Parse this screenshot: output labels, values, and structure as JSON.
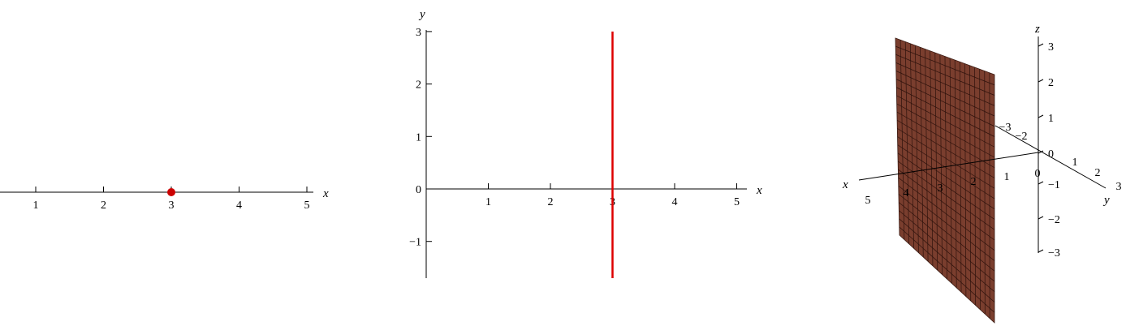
{
  "chart_data": [
    {
      "type": "scatter",
      "dimension": "1D number line",
      "xlabel": "x",
      "xticks": [
        "1",
        "2",
        "3",
        "4",
        "5"
      ],
      "points": [
        {
          "x": 3,
          "color": "#cc0000"
        }
      ]
    },
    {
      "type": "line",
      "dimension": "2D plane",
      "xlabel": "x",
      "ylabel": "y",
      "xticks": [
        "1",
        "2",
        "3",
        "4",
        "5"
      ],
      "yticks": [
        "−1",
        "0",
        "1",
        "2",
        "3"
      ],
      "ylim": [
        -1.7,
        3
      ],
      "line": {
        "x": 3,
        "y_range": [
          -1.7,
          3
        ],
        "color": "#dd0000"
      }
    },
    {
      "type": "surface",
      "dimension": "3D space",
      "xlabel": "x",
      "ylabel": "y",
      "zlabel": "z",
      "xticks": [
        "5",
        "4",
        "3",
        "2",
        "1",
        "0"
      ],
      "yticks": [
        "−3",
        "−2",
        "1",
        "2",
        "3"
      ],
      "zticks": [
        "3",
        "2",
        "1",
        "0",
        "−1",
        "−2",
        "−3"
      ],
      "plane": {
        "x": 3,
        "color": "#7a3e2e"
      }
    }
  ]
}
